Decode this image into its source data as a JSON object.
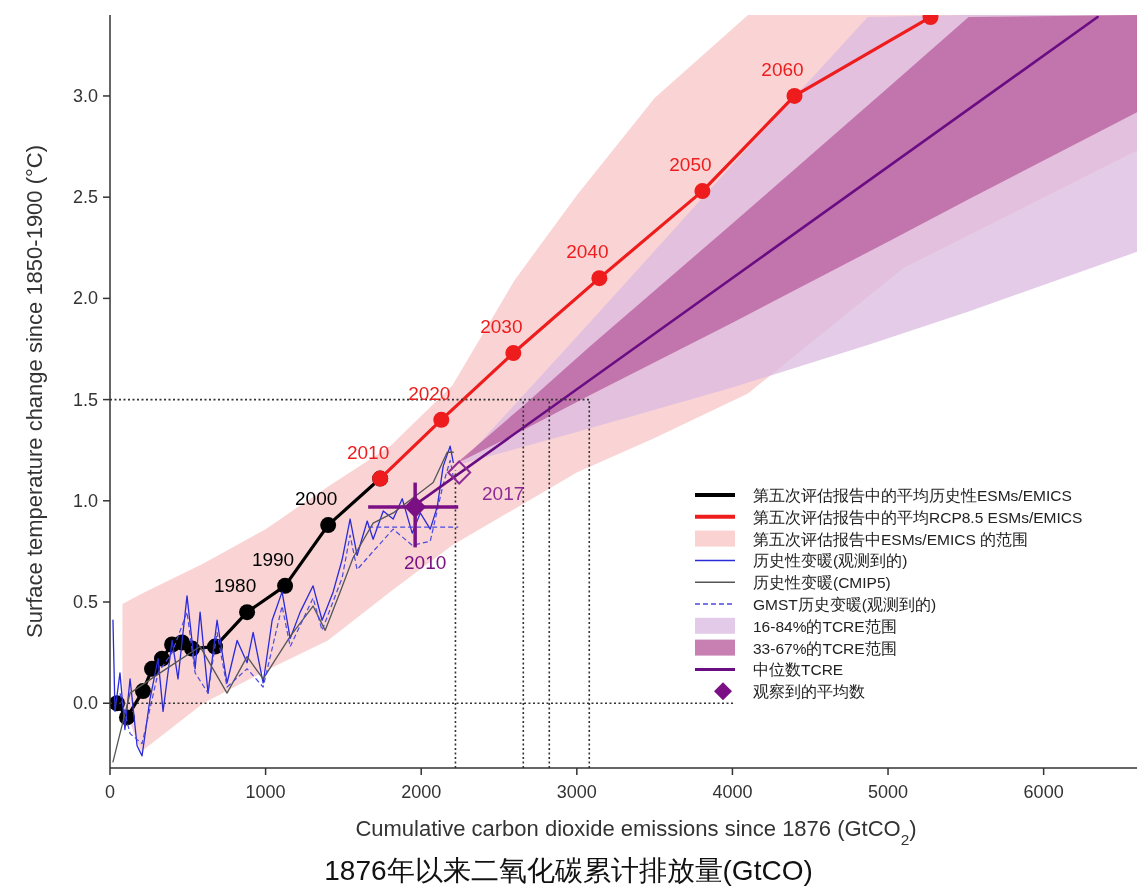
{
  "chart_data": {
    "type": "line",
    "xlabel": "Cumulative carbon dioxide emissions since 1876 (GtCO$_{2}$)",
    "ylabel": "Surface temperature change since 1850-1900 (°C)",
    "xlim": [
      0,
      6600
    ],
    "ylim": [
      -0.32,
      3.4
    ],
    "xticks": [
      0,
      1000,
      2000,
      3000,
      4000,
      5000,
      6000
    ],
    "yticks": [
      {
        "value": 0,
        "label": "0.0"
      },
      0.5,
      {
        "value": 1,
        "label": "1.0"
      },
      1.5,
      {
        "value": 2,
        "label": "2.0"
      },
      2.5,
      {
        "value": 3,
        "label": "3.0"
      }
    ],
    "legend": "right",
    "series": [
      {
        "type": "line",
        "name": "第五次评估报告中的平均历史性ESMs/EMICS",
        "color": "#000000",
        "marker": "circle",
        "x": [
          45,
          109,
          212,
          270,
          334,
          399,
          463,
          527,
          675,
          881,
          1125,
          1402,
          1736
        ],
        "values": [
          0.0,
          -0.07,
          0.06,
          0.17,
          0.22,
          0.29,
          0.3,
          0.27,
          0.28,
          0.45,
          0.58,
          0.88,
          1.11
        ]
      },
      {
        "type": "line",
        "name": "第五次评估报告中的平均RCP8.5 ESMs/EMICS",
        "color": "#ee1c1c",
        "marker": "circle",
        "x": [
          1736,
          2129,
          2592,
          3145,
          3807,
          4399,
          5273
        ],
        "values": [
          1.11,
          1.4,
          1.73,
          2.1,
          2.53,
          3.0,
          3.39
        ]
      },
      {
        "type": "area",
        "name": "第五次评估报告中ESMs/EMICS 的范围",
        "color": "#f8c3c3",
        "x": [
          80,
          200,
          600,
          1000,
          1400,
          1800,
          2200,
          2600,
          3000,
          3500,
          4100,
          5100,
          6600
        ],
        "values": [
          null,
          null,
          null,
          null,
          null,
          null,
          null,
          null,
          null,
          null,
          null,
          null,
          null
        ],
        "lower": [
          0.0,
          -0.24,
          0.0,
          0.16,
          0.31,
          0.55,
          0.78,
          0.96,
          1.14,
          1.31,
          1.53,
          2.15,
          2.73
        ],
        "upper": [
          0.49,
          0.54,
          0.69,
          0.86,
          1.07,
          1.27,
          1.57,
          2.09,
          2.51,
          2.99,
          3.4,
          3.4,
          3.4
        ]
      },
      {
        "type": "line",
        "name": "历史性变暖(观测到的)",
        "color": "#2a2ad8",
        "line_style": "solid",
        "x": [
          19,
          32,
          64,
          96,
          129,
          174,
          206,
          257,
          309,
          341,
          399,
          437,
          495,
          547,
          579,
          630,
          688,
          752,
          817,
          881,
          920,
          984,
          1042,
          1106,
          1158,
          1222,
          1305,
          1363,
          1434,
          1492,
          1543,
          1588,
          1653,
          1691,
          1756,
          1820,
          1878,
          1942,
          1994,
          2058,
          2103,
          2141,
          2186,
          2206
        ],
        "values": [
          0.41,
          -0.04,
          0.15,
          -0.13,
          0.12,
          -0.21,
          -0.26,
          0.02,
          0.22,
          -0.04,
          0.31,
          0.12,
          0.53,
          0.17,
          0.45,
          0.05,
          0.41,
          0.1,
          0.31,
          0.2,
          0.35,
          0.1,
          0.41,
          0.55,
          0.32,
          0.45,
          0.58,
          0.41,
          0.55,
          0.71,
          0.91,
          0.73,
          0.9,
          0.81,
          0.95,
          0.91,
          1.01,
          0.84,
          0.94,
          0.86,
          0.97,
          1.17,
          1.27,
          1.19
        ]
      },
      {
        "type": "line",
        "name": "历史性变暖(CMIP5)",
        "color": "#555555",
        "line_style": "solid",
        "x": [
          19,
          129,
          322,
          579,
          752,
          881,
          984,
          1158,
          1305,
          1383,
          1479,
          1563,
          1691,
          1820,
          1929,
          2077,
          2167,
          2206
        ],
        "values": [
          -0.29,
          0.05,
          0.15,
          0.28,
          0.05,
          0.23,
          0.12,
          0.33,
          0.48,
          0.36,
          0.55,
          0.72,
          0.89,
          0.94,
          null,
          1.09,
          1.24,
          1.24
        ]
      },
      {
        "type": "line",
        "name": "GMST历史变暖(观测到的)",
        "color": "#4a4ae0",
        "line_style": "dashed",
        "x": [
          64,
          129,
          206,
          309,
          399,
          495,
          547,
          630,
          688,
          752,
          881,
          984,
          1106,
          1158,
          1305,
          1363,
          1492,
          1543,
          1588,
          1691,
          1820,
          1942,
          2058,
          2141,
          2186,
          2206
        ],
        "values": [
          0.05,
          -0.15,
          -0.2,
          0.15,
          0.25,
          0.45,
          0.15,
          0.05,
          0.35,
          0.08,
          0.17,
          0.08,
          0.48,
          0.28,
          0.52,
          0.36,
          0.62,
          0.83,
          0.66,
          0.75,
          0.86,
          0.78,
          0.8,
          1.08,
          1.2,
          1.12
        ]
      },
      {
        "type": "area",
        "name": "16-84%的TCRE范围",
        "color": "#d9b8e0",
        "x": [
          2250,
          3000,
          4000,
          4870,
          5500,
          6600
        ],
        "values": [
          null,
          null,
          null,
          null,
          null,
          null
        ],
        "lower": [
          1.18,
          1.34,
          1.56,
          1.77,
          1.93,
          2.23
        ],
        "upper": [
          1.18,
          1.81,
          2.66,
          3.39,
          3.4,
          3.4
        ]
      },
      {
        "type": "area",
        "name": "33-67%的TCRE范围",
        "color": "#b5569a",
        "x": [
          2219,
          2656,
          3080,
          4000,
          5000,
          5518,
          6600
        ],
        "values": [
          null,
          null,
          null,
          null,
          null,
          null,
          null
        ],
        "lower": [
          1.18,
          1.35,
          1.52,
          1.88,
          2.28,
          2.49,
          2.92
        ],
        "upper": [
          1.18,
          1.47,
          1.76,
          2.37,
          3.04,
          3.39,
          3.4
        ]
      },
      {
        "type": "line",
        "name": "中位数TCRE",
        "color": "#6a0d83",
        "line_style": "solid",
        "x": [
          1961,
          6347
        ],
        "values": [
          0.98,
          3.39
        ]
      },
      {
        "type": "scatter",
        "name": "观察到的平均数",
        "color": "#7b1085",
        "marker": "diamond",
        "x": [
          1961
        ],
        "values": [
          0.97
        ],
        "errors": [
          [
            0.77,
            1.09
          ]
        ],
        "xerrors": [
          [
            1659,
            2238
          ]
        ]
      },
      {
        "type": "scatter",
        "color": "#8e2a95",
        "marker": "diamond",
        "x": [
          2244
        ],
        "values": [
          1.14
        ]
      },
      {
        "type": "line",
        "color": "#4a4ae0",
        "line_style": "dashed",
        "x": [
          1659,
          2238
        ],
        "values": [
          0.87,
          0.87
        ]
      },
      {
        "type": "line",
        "color": "#333333",
        "line_style": "dotted",
        "x": [
          0,
          4020
        ],
        "values": [
          0,
          0
        ]
      },
      {
        "type": "line",
        "color": "#333333",
        "line_style": "dotted",
        "x": [
          0,
          3080
        ],
        "values": [
          1.5,
          1.5
        ]
      },
      {
        "type": "line",
        "color": "#333333",
        "line_style": "dotted",
        "x": [
          2220,
          2220
        ],
        "values": [
          -0.32,
          1.15
        ]
      },
      {
        "type": "line",
        "color": "#333333",
        "line_style": "dotted",
        "x": [
          2656,
          2656
        ],
        "values": [
          -0.32,
          1.5
        ]
      },
      {
        "type": "line",
        "color": "#333333",
        "line_style": "dotted",
        "x": [
          2823,
          2823
        ],
        "values": [
          -0.32,
          1.5
        ]
      },
      {
        "type": "line",
        "color": "#333333",
        "line_style": "dotted",
        "x": [
          3080,
          3080
        ],
        "values": [
          -0.32,
          1.5
        ]
      }
    ],
    "annotations": [
      {
        "text": "1980",
        "x": 881,
        "y": 0.45
      },
      {
        "text": "1990",
        "x": 1125,
        "y": 0.58
      },
      {
        "text": "2000",
        "x": 1402,
        "y": 0.88
      },
      {
        "text": "2010",
        "x": 1736,
        "y": 1.11
      },
      {
        "text": "2020",
        "x": 2129,
        "y": 1.4
      },
      {
        "text": "2030",
        "x": 2592,
        "y": 1.73
      },
      {
        "text": "2040",
        "x": 3145,
        "y": 2.1
      },
      {
        "text": "2050",
        "x": 3807,
        "y": 2.53
      },
      {
        "text": "2060",
        "x": 4399,
        "y": 3.0
      },
      {
        "text": "2010",
        "x": 1961,
        "y": 0.97
      },
      {
        "text": "2017",
        "x": 2244,
        "y": 1.14
      },
      "1876年以来二氧化碳累计排放量(GtCO)"
    ]
  }
}
